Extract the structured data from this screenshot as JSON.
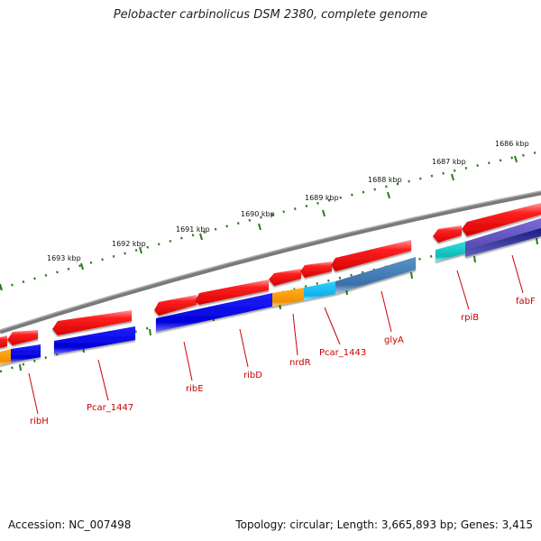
{
  "title": "Pelobacter carbinolicus DSM 2380, complete genome",
  "footer": {
    "accession": "Accession: NC_007498",
    "summary": "Topology: circular; Length: 3,665,893 bp; Genes: 3,415"
  },
  "colors": {
    "backbone": "#7a7a7a",
    "tick": "#2a7a1a",
    "gene_red": "#ee1111",
    "gene_blue": "#0a0ae0",
    "gene_orange": "#f5a000",
    "gene_cyan": "#22c8ee",
    "gene_steel": "#4a82b8",
    "gene_teal": "#22cccc",
    "gene_slate": "#6a5ac8",
    "gene_navy": "#10106a",
    "label": "#cc0000"
  },
  "scale": {
    "labels": [
      "1693 kbp",
      "1692 kbp",
      "1691 kbp",
      "1690 kbp",
      "1689 kbp",
      "1688 kbp",
      "1687 kbp",
      "1686 kbp"
    ]
  },
  "gene_labels": [
    "ribH",
    "Pcar_1447",
    "ribE",
    "ribD",
    "nrdR",
    "Pcar_1443",
    "glyA",
    "rpiB",
    "fabF"
  ]
}
